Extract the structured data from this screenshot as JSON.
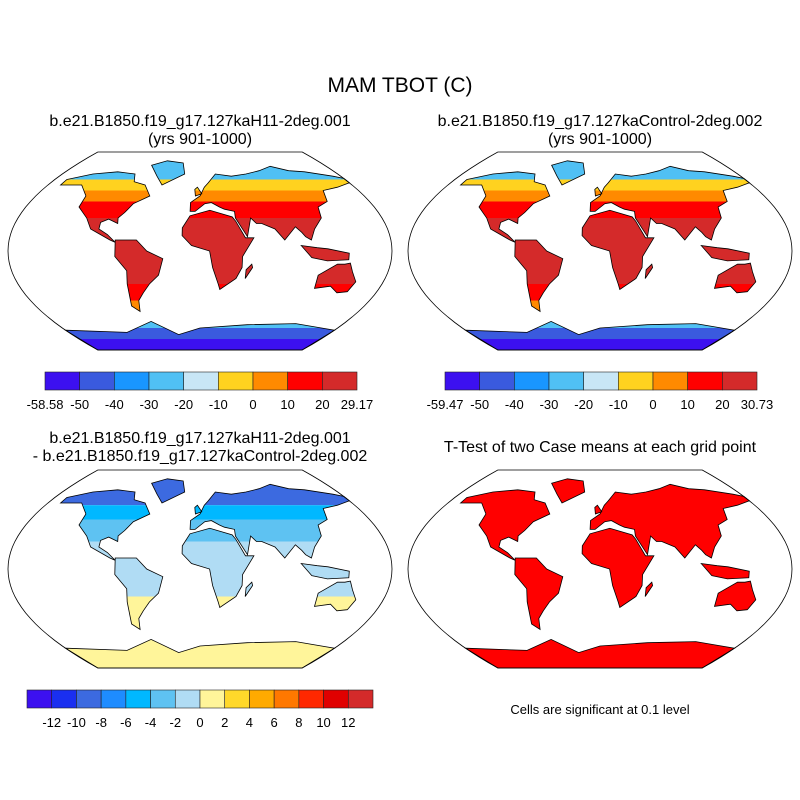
{
  "title": "MAM TBOT (C)",
  "panels": [
    {
      "title_line1": "b.e21.B1850.f19_g17.127kaH11-2deg.001",
      "title_line2": "(yrs 901-1000)",
      "field": "case1"
    },
    {
      "title_line1": "b.e21.B1850.f19_g17.127kaControl-2deg.002",
      "title_line2": "(yrs 901-1000)",
      "field": "case2"
    },
    {
      "title_line1": "b.e21.B1850.f19_g17.127kaH11-2deg.001",
      "title_line2": "- b.e21.B1850.f19_g17.127kaControl-2deg.002",
      "field": "difference"
    },
    {
      "title_line1": "T-Test of two Case means at each grid point",
      "title_line2": "",
      "field": "ttest"
    }
  ],
  "colorbars": [
    {
      "colors": [
        "#3c10f0",
        "#3a5ade",
        "#1996ff",
        "#50c0f4",
        "#c8e6f6",
        "#ffd21f",
        "#ff8a00",
        "#ff0000",
        "#d42a2a"
      ],
      "labels": [
        "-58.58",
        "-50",
        "-40",
        "-30",
        "-20",
        "-10",
        "0",
        "10",
        "20",
        "29.17"
      ]
    },
    {
      "colors": [
        "#3c10f0",
        "#3a5ade",
        "#1996ff",
        "#50c0f4",
        "#c8e6f6",
        "#ffd21f",
        "#ff8a00",
        "#ff0000",
        "#d42a2a"
      ],
      "labels": [
        "-59.47",
        "-50",
        "-40",
        "-30",
        "-20",
        "-10",
        "0",
        "10",
        "20",
        "30.73"
      ]
    },
    {
      "colors": [
        "#3c10f0",
        "#1a2ff0",
        "#3c6ae0",
        "#1e8cff",
        "#00b8ff",
        "#5ec2f2",
        "#b0dcf4",
        "#fff59a",
        "#ffd82a",
        "#ffaa00",
        "#ff7800",
        "#ff2800",
        "#e00000",
        "#d42a2a"
      ],
      "labels": [
        "-12",
        "-10",
        "-8",
        "-6",
        "-4",
        "-2",
        "0",
        "2",
        "4",
        "6",
        "8",
        "10",
        "12"
      ]
    }
  ],
  "ttest_note": "Cells are significant at 0.1 level",
  "significant_color": "#ff0000"
}
